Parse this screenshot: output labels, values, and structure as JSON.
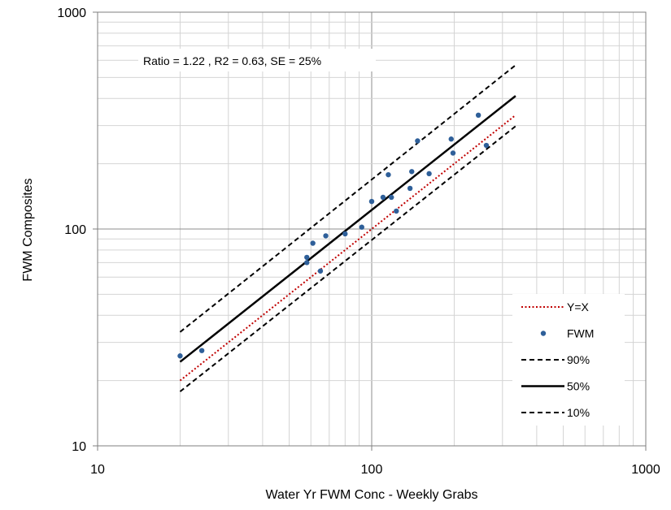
{
  "chart_data": {
    "type": "scatter",
    "title": "",
    "xlabel": "Water Yr FWM Conc - Weekly Grabs",
    "ylabel": "FWM Composites",
    "x_scale": "log",
    "y_scale": "log",
    "xlim": [
      10,
      1000
    ],
    "ylim": [
      10,
      1000
    ],
    "x_ticks": [
      "10",
      "100",
      "1000"
    ],
    "y_ticks": [
      "10",
      "100",
      "1000"
    ],
    "grid": true,
    "legend_position": "bottom-right",
    "annotation": "Ratio = 1.22 , R2 = 0.63, SE = 25%",
    "series": [
      {
        "name": "Y=X",
        "kind": "line",
        "style": "dotted",
        "color": "#c00000",
        "x": [
          20,
          335
        ],
        "y": [
          20,
          335
        ]
      },
      {
        "name": "FWM",
        "kind": "points",
        "color": "#2e5f99",
        "x": [
          20,
          24,
          58,
          58,
          61,
          65,
          68,
          80,
          92,
          100,
          110,
          115,
          118,
          123,
          138,
          140,
          147,
          162,
          195,
          198,
          245,
          262
        ],
        "y": [
          26,
          27.5,
          74,
          70,
          86,
          64,
          93,
          95,
          102,
          134,
          140,
          178,
          140,
          121,
          154,
          184,
          255,
          180,
          260,
          224,
          335,
          243
        ]
      },
      {
        "name": "90%",
        "kind": "line",
        "style": "dashed",
        "color": "#000000",
        "x": [
          20,
          335
        ],
        "y": [
          33.5,
          570
        ]
      },
      {
        "name": "50%",
        "kind": "line",
        "style": "solid",
        "color": "#000000",
        "x": [
          20,
          335
        ],
        "y": [
          24.4,
          411
        ]
      },
      {
        "name": "10%",
        "kind": "line",
        "style": "dashed",
        "color": "#000000",
        "x": [
          20,
          335
        ],
        "y": [
          17.8,
          298
        ]
      }
    ]
  }
}
